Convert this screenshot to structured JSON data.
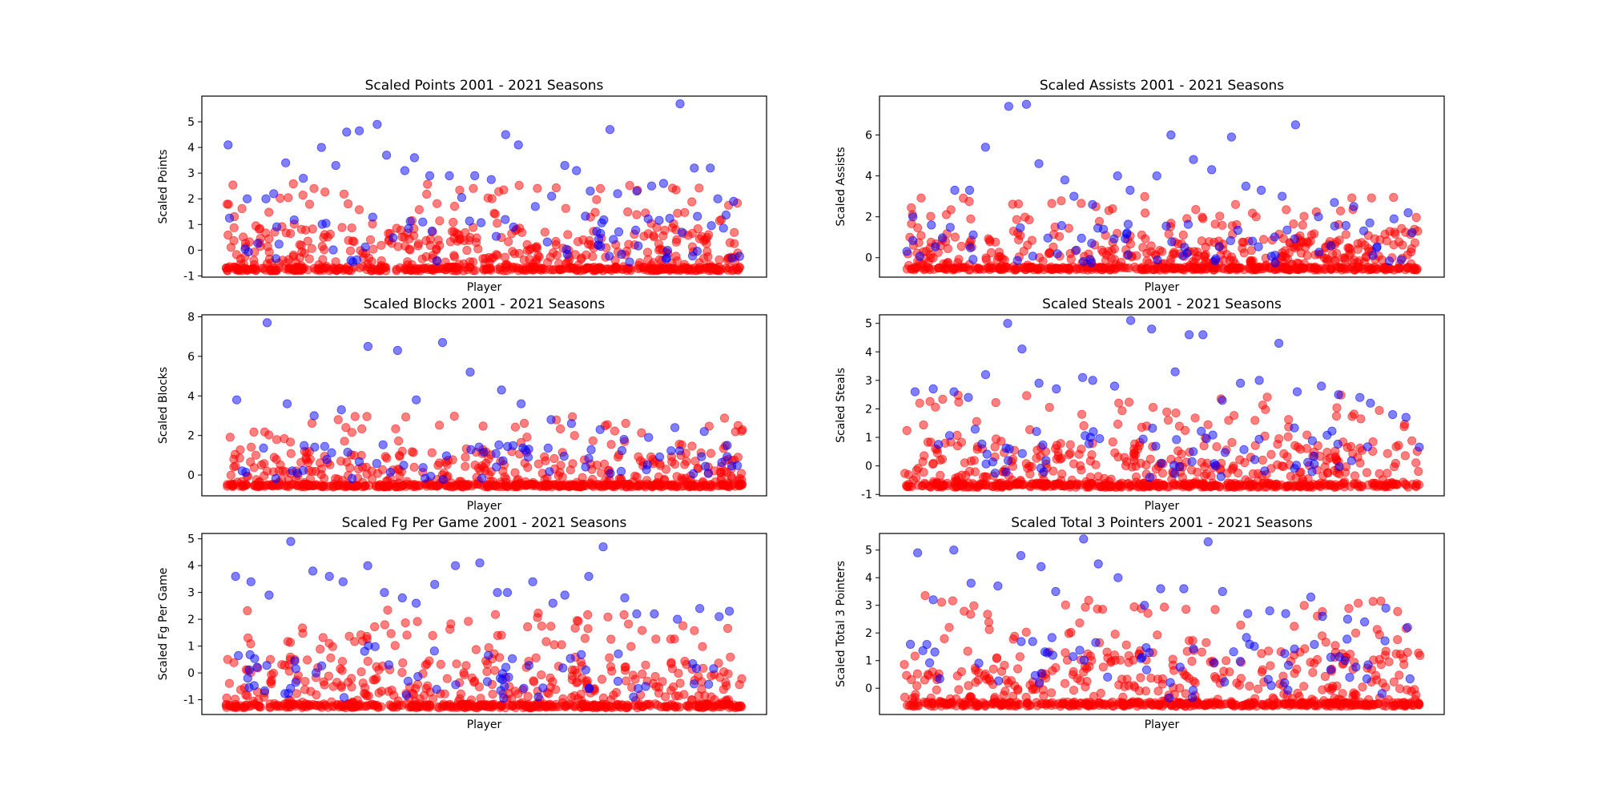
{
  "chart_data": [
    {
      "type": "scatter",
      "title": "Scaled Points 2001 - 2021 Seasons",
      "xlabel": "Player",
      "ylabel": "Scaled Points",
      "ylim": [
        -1.05,
        6.0
      ],
      "yticks": [
        -1,
        0,
        1,
        2,
        3,
        4,
        5
      ],
      "n_points": 700,
      "red_range": [
        -0.8,
        2.6
      ],
      "highlights": [
        4.1,
        2.0,
        2.0,
        2.2,
        3.4,
        2.8,
        4.0,
        3.3,
        4.6,
        4.65,
        4.9,
        3.7,
        3.1,
        3.6,
        2.9,
        2.9,
        2.05,
        2.9,
        2.75,
        4.5,
        4.1,
        1.7,
        2.1,
        3.3,
        3.1,
        2.3,
        4.7,
        2.2,
        2.3,
        2.5,
        2.6,
        5.7,
        3.2,
        3.2,
        2.0,
        1.9
      ],
      "colors": {
        "red": "#ff0000",
        "blue": "#0000ff"
      },
      "grid": false
    },
    {
      "type": "scatter",
      "title": "Scaled Assists 2001 - 2021 Seasons",
      "xlabel": "Player",
      "ylabel": "Scaled Assists",
      "ylim": [
        -0.95,
        7.9
      ],
      "yticks": [
        0,
        2,
        4,
        6
      ],
      "n_points": 700,
      "red_range": [
        -0.6,
        3.0
      ],
      "highlights": [
        2.0,
        1.6,
        3.3,
        3.3,
        5.4,
        7.4,
        7.5,
        4.6,
        3.8,
        3.0,
        2.6,
        4.0,
        3.3,
        4.0,
        6.0,
        4.8,
        4.3,
        5.9,
        3.5,
        3.3,
        3.0,
        6.5,
        2.0,
        2.7,
        2.5,
        1.7,
        1.9,
        2.2
      ],
      "colors": {
        "red": "#ff0000",
        "blue": "#0000ff"
      },
      "grid": false
    },
    {
      "type": "scatter",
      "title": "Scaled Blocks 2001 - 2021 Seasons",
      "xlabel": "Player",
      "ylabel": "Scaled Blocks",
      "ylim": [
        -1.05,
        8.1
      ],
      "yticks": [
        0,
        2,
        4,
        6,
        8
      ],
      "n_points": 700,
      "red_range": [
        -0.6,
        3.0
      ],
      "highlights": [
        3.8,
        7.7,
        3.6,
        3.0,
        3.3,
        6.5,
        6.3,
        3.8,
        6.7,
        5.2,
        4.3,
        3.6,
        2.8,
        2.6,
        2.3,
        1.8,
        1.9,
        2.4,
        2.2,
        1.5
      ],
      "colors": {
        "red": "#ff0000",
        "blue": "#0000ff"
      },
      "grid": false
    },
    {
      "type": "scatter",
      "title": "Scaled Steals 2001 - 2021 Seasons",
      "xlabel": "Player",
      "ylabel": "Scaled Steals",
      "ylim": [
        -1.05,
        5.3
      ],
      "yticks": [
        -1,
        0,
        1,
        2,
        3,
        4,
        5
      ],
      "n_points": 700,
      "red_range": [
        -0.75,
        2.5
      ],
      "highlights": [
        2.6,
        2.7,
        2.6,
        2.4,
        3.2,
        5.0,
        4.1,
        2.9,
        2.7,
        3.1,
        3.0,
        2.8,
        5.1,
        4.8,
        3.3,
        4.6,
        4.6,
        2.3,
        2.9,
        3.0,
        4.3,
        2.6,
        2.8,
        2.5,
        2.4,
        2.2,
        1.8,
        1.7
      ],
      "colors": {
        "red": "#ff0000",
        "blue": "#0000ff"
      },
      "grid": false
    },
    {
      "type": "scatter",
      "title": "Scaled Fg Per Game 2001 - 2021 Seasons",
      "xlabel": "Player",
      "ylabel": "Scaled Fg Per Game",
      "ylim": [
        -1.55,
        5.2
      ],
      "yticks": [
        -1,
        0,
        1,
        2,
        3,
        4,
        5
      ],
      "n_points": 700,
      "red_range": [
        -1.3,
        2.5
      ],
      "highlights": [
        3.6,
        3.4,
        2.9,
        4.9,
        3.8,
        3.6,
        3.4,
        4.0,
        3.0,
        2.8,
        2.6,
        3.3,
        4.0,
        4.1,
        3.0,
        3.0,
        3.4,
        2.6,
        2.9,
        3.6,
        4.7,
        2.8,
        2.2,
        2.2,
        2.0,
        2.4,
        2.1,
        2.3
      ],
      "colors": {
        "red": "#ff0000",
        "blue": "#0000ff"
      },
      "grid": false
    },
    {
      "type": "scatter",
      "title": "Scaled Total 3 Pointers 2001 - 2021 Seasons",
      "xlabel": "Player",
      "ylabel": "Scaled Total 3 Pointers",
      "ylim": [
        -0.95,
        5.6
      ],
      "yticks": [
        0,
        1,
        2,
        3,
        4,
        5
      ],
      "n_points": 700,
      "red_range": [
        -0.65,
        3.4
      ],
      "highlights": [
        4.9,
        3.2,
        5.0,
        3.8,
        3.7,
        4.8,
        4.4,
        3.5,
        5.4,
        4.5,
        4.0,
        3.0,
        3.6,
        3.6,
        5.3,
        3.5,
        2.7,
        2.8,
        2.7,
        3.3,
        2.6,
        2.5,
        2.4,
        2.9,
        2.2
      ],
      "colors": {
        "red": "#ff0000",
        "blue": "#0000ff"
      },
      "grid": false
    }
  ]
}
